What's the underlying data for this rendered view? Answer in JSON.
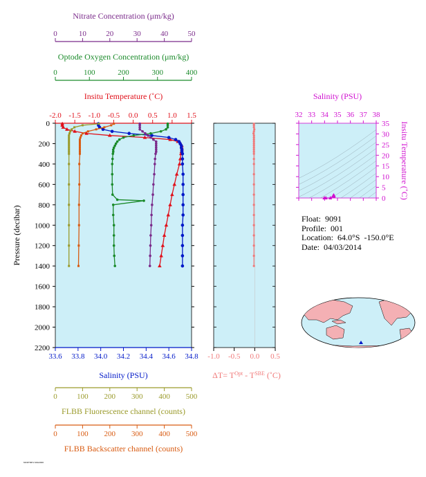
{
  "info": {
    "float_label": "Float:",
    "float_value": "9091",
    "profile_label": "Profile:",
    "profile_value": "001",
    "location_label": "Location:",
    "location_value": "64.0°S  -150.0°E",
    "date_label": "Date:",
    "date_value": "04/03/2014"
  },
  "footer_text": "MODTMP1.SOH2000",
  "colors": {
    "nitrate": "#7a2a8a",
    "oxygen": "#1a8a2a",
    "temperature": "#e0101a",
    "salinity": "#0018c8",
    "fluorescence": "#9a9a2a",
    "backscatter": "#d85a10",
    "delta_t": "#f07878",
    "panel_bg": "#cdeff8",
    "ts_axis": "#d010d0"
  },
  "chart_data": [
    {
      "type": "line",
      "panel": "profiles",
      "axes": {
        "nitrate": {
          "label": "Nitrate Concentration (μm/kg)",
          "range": [
            0,
            50
          ],
          "ticks": [
            "0",
            "10",
            "20",
            "30",
            "40",
            "50"
          ]
        },
        "oxygen": {
          "label": "Optode Oxygen Concentration (μm/kg)",
          "range": [
            0,
            400
          ],
          "ticks": [
            "0",
            "100",
            "200",
            "300",
            "400"
          ]
        },
        "temperature": {
          "label": "Insitu Temperature (˚C)",
          "range": [
            -2.0,
            1.5
          ],
          "ticks": [
            "-2.0",
            "-1.5",
            "-1.0",
            "-0.5",
            "0.0",
            "0.5",
            "1.0",
            "1.5"
          ]
        },
        "salinity": {
          "label": "Salinity (PSU)",
          "range": [
            33.6,
            34.8
          ],
          "ticks": [
            "33.6",
            "33.8",
            "34.0",
            "34.2",
            "34.4",
            "34.6",
            "34.8"
          ]
        },
        "fluorescence": {
          "label": "FLBB Fluorescence channel (counts)",
          "range": [
            0,
            500
          ],
          "ticks": [
            "0",
            "100",
            "200",
            "300",
            "400",
            "500"
          ]
        },
        "backscatter": {
          "label": "FLBB Backscatter channel (counts)",
          "range": [
            0,
            500
          ],
          "ticks": [
            "0",
            "100",
            "200",
            "300",
            "400",
            "500"
          ]
        },
        "pressure": {
          "label": "Pressure (decibar)",
          "range": [
            0,
            2200
          ],
          "ticks": [
            "0",
            "200",
            "400",
            "600",
            "800",
            "1000",
            "1200",
            "1400",
            "1600",
            "1800",
            "2000",
            "2200"
          ]
        }
      },
      "series": [
        {
          "key": "temperature",
          "pressure": [
            5,
            20,
            40,
            60,
            80,
            100,
            120,
            140,
            160,
            180,
            200,
            220,
            240,
            260,
            280,
            300,
            350,
            400,
            500,
            600,
            700,
            800,
            900,
            1000,
            1100,
            1200,
            1300,
            1400
          ],
          "values": [
            -1.82,
            -1.82,
            -1.8,
            -1.7,
            -1.5,
            -1.2,
            -0.6,
            0.3,
            0.95,
            1.15,
            1.22,
            1.25,
            1.25,
            1.25,
            1.24,
            1.23,
            1.21,
            1.19,
            1.12,
            1.06,
            1.0,
            0.95,
            0.9,
            0.85,
            0.8,
            0.76,
            0.72,
            0.68
          ]
        },
        {
          "key": "salinity",
          "pressure": [
            5,
            20,
            40,
            60,
            80,
            100,
            120,
            140,
            160,
            180,
            200,
            220,
            240,
            260,
            280,
            300,
            350,
            400,
            500,
            600,
            700,
            800,
            900,
            1000,
            1100,
            1200,
            1300,
            1400
          ],
          "values": [
            33.98,
            33.98,
            33.99,
            34.02,
            34.1,
            34.25,
            34.45,
            34.6,
            34.66,
            34.69,
            34.7,
            34.71,
            34.71,
            34.715,
            34.715,
            34.72,
            34.72,
            34.72,
            34.725,
            34.725,
            34.725,
            34.725,
            34.725,
            34.72,
            34.72,
            34.72,
            34.72,
            34.72
          ]
        },
        {
          "key": "oxygen",
          "pressure": [
            5,
            20,
            40,
            60,
            80,
            100,
            120,
            140,
            160,
            180,
            200,
            220,
            240,
            260,
            280,
            300,
            350,
            400,
            500,
            600,
            700,
            750,
            760,
            800,
            900,
            1000,
            1100,
            1200,
            1300,
            1400
          ],
          "values": [
            330,
            330,
            330,
            325,
            310,
            280,
            230,
            200,
            188,
            182,
            178,
            175,
            172,
            170,
            170,
            169,
            168,
            167,
            167,
            167,
            168,
            182,
            260,
            170,
            170,
            172,
            172,
            172,
            173,
            175
          ]
        },
        {
          "key": "nitrate",
          "pressure": [
            5,
            20,
            40,
            60,
            80,
            100,
            120,
            140,
            160,
            180,
            200,
            220,
            240,
            260,
            280,
            300,
            350,
            400,
            500,
            600,
            700,
            800,
            900,
            1000,
            1100,
            1200,
            1300,
            1400
          ],
          "values": [
            31,
            31,
            31,
            31,
            32,
            33,
            34,
            35,
            36,
            37,
            37,
            37,
            37,
            37,
            37,
            36.8,
            36.6,
            36.5,
            36.3,
            36,
            35.8,
            35.5,
            35.3,
            35.2,
            35,
            34.9,
            34.8,
            34.7
          ]
        },
        {
          "key": "fluorescence",
          "pressure": [
            5,
            20,
            40,
            60,
            80,
            100,
            120,
            140,
            160,
            180,
            200,
            220,
            240,
            260,
            280,
            300,
            400,
            600,
            800,
            1000,
            1200,
            1400
          ],
          "values": [
            160,
            100,
            70,
            60,
            55,
            52,
            50,
            50,
            50,
            50,
            50,
            50,
            50,
            50,
            50,
            50,
            50,
            50,
            50,
            50,
            50,
            50
          ]
        },
        {
          "key": "backscatter",
          "pressure": [
            5,
            20,
            40,
            60,
            80,
            100,
            120,
            140,
            160,
            180,
            200,
            220,
            240,
            260,
            280,
            300,
            400,
            600,
            800,
            1000,
            1200,
            1400
          ],
          "values": [
            215,
            205,
            180,
            150,
            120,
            100,
            95,
            92,
            90,
            90,
            90,
            90,
            90,
            90,
            90,
            90,
            88,
            88,
            87,
            87,
            86,
            85
          ]
        }
      ]
    },
    {
      "type": "scatter",
      "panel": "delta_t",
      "xlabel": "ΔT= T",
      "xlabel_sup1": "Opt",
      "xlabel_mid": " - T",
      "xlabel_sup2": "SBE",
      "xlabel_end": " (˚C)",
      "xlim": [
        -1.0,
        0.5
      ],
      "xticks": [
        "-1.0",
        "-0.5",
        "0.0",
        "0.5"
      ],
      "pressure": [
        5,
        20,
        40,
        60,
        80,
        100,
        120,
        140,
        160,
        180,
        200,
        220,
        240,
        260,
        280,
        300,
        350,
        400,
        500,
        600,
        700,
        800,
        900,
        1000,
        1100,
        1200,
        1300,
        1400
      ],
      "values": [
        -0.02,
        -0.02,
        -0.02,
        -0.01,
        -0.02,
        -0.03,
        -0.02,
        -0.02,
        -0.02,
        -0.02,
        -0.02,
        -0.02,
        -0.02,
        -0.02,
        -0.02,
        -0.02,
        -0.02,
        -0.02,
        -0.02,
        -0.02,
        -0.02,
        -0.02,
        -0.02,
        -0.02,
        -0.02,
        -0.02,
        -0.02,
        -0.02
      ]
    },
    {
      "type": "scatter",
      "panel": "ts",
      "xlabel": "Salinity (PSU)",
      "ylabel": "Insitu Temperature (˚C)",
      "xlim": [
        32,
        38
      ],
      "ylim": [
        0,
        35
      ],
      "xticks": [
        "32",
        "33",
        "34",
        "35",
        "36",
        "37",
        "38"
      ],
      "yticks": [
        "0",
        "5",
        "10",
        "15",
        "20",
        "25",
        "30",
        "35"
      ],
      "salinity": [
        33.98,
        34.1,
        34.45,
        34.66,
        34.7,
        34.71,
        34.72,
        34.72,
        34.72
      ],
      "temperature": [
        -1.82,
        -1.5,
        -0.6,
        0.95,
        1.22,
        1.25,
        1.2,
        1.0,
        0.7
      ]
    }
  ]
}
